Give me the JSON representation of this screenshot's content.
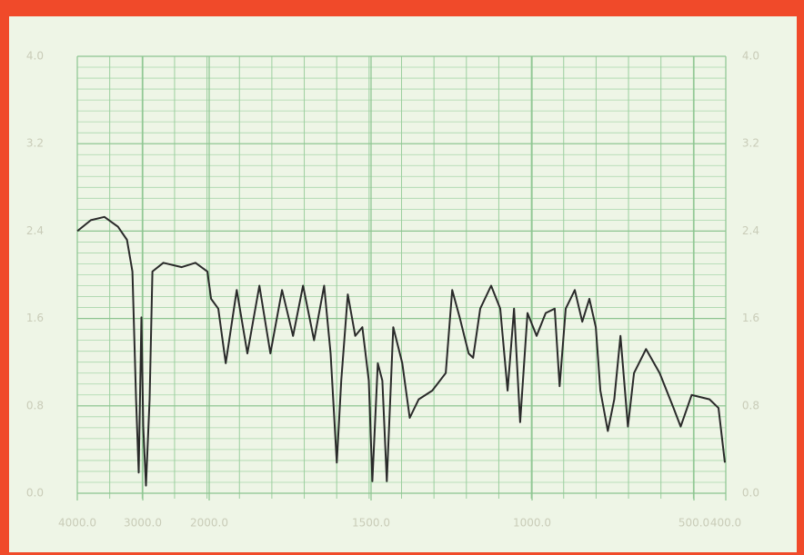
{
  "chart_data": {
    "type": "line",
    "color": "#2a2a2a",
    "grid": true,
    "x": [
      4000,
      3793,
      3586,
      3379,
      3241,
      3159,
      3103,
      3062,
      3021,
      2993,
      2952,
      2897,
      2855,
      2690,
      2414,
      2207,
      2028,
      1994,
      1972,
      1949,
      1915,
      1882,
      1845,
      1811,
      1775,
      1741,
      1710,
      1676,
      1645,
      1625,
      1606,
      1592,
      1572,
      1549,
      1527,
      1507,
      1496,
      1479,
      1465,
      1451,
      1431,
      1403,
      1380,
      1352,
      1310,
      1268,
      1248,
      1225,
      1197,
      1183,
      1161,
      1127,
      1099,
      1076,
      1056,
      1037,
      1014,
      986,
      958,
      930,
      915,
      896,
      868,
      845,
      823,
      803,
      789,
      766,
      746,
      727,
      704,
      685,
      648,
      606,
      563,
      541,
      507,
      451,
      423,
      403
    ],
    "values": [
      2.4,
      2.5,
      2.53,
      2.44,
      2.32,
      2.03,
      0.86,
      0.19,
      1.61,
      0.61,
      0.07,
      0.86,
      2.03,
      2.11,
      2.07,
      2.11,
      2.03,
      1.78,
      1.69,
      1.19,
      1.86,
      1.28,
      1.9,
      1.28,
      1.86,
      1.44,
      1.9,
      1.4,
      1.9,
      1.28,
      0.28,
      1.03,
      1.82,
      1.44,
      1.52,
      1.03,
      0.11,
      1.19,
      1.03,
      0.11,
      1.52,
      1.19,
      0.69,
      0.86,
      0.94,
      1.1,
      1.86,
      1.61,
      1.28,
      1.24,
      1.69,
      1.9,
      1.69,
      0.94,
      1.69,
      0.65,
      1.65,
      1.44,
      1.65,
      1.69,
      0.98,
      1.69,
      1.86,
      1.57,
      1.78,
      1.52,
      0.94,
      0.57,
      0.86,
      1.44,
      0.61,
      1.1,
      1.32,
      1.1,
      0.78,
      0.61,
      0.9,
      0.86,
      0.78,
      0.28
    ],
    "xlim": [
      4000,
      400
    ],
    "xticks": [
      {
        "value": 4000,
        "label": "4000.0"
      },
      {
        "value": 3000,
        "label": "3000.0"
      },
      {
        "value": 2000,
        "label": "2000.0"
      },
      {
        "value": 1500,
        "label": "1500.0"
      },
      {
        "value": 1000,
        "label": "1000.0"
      },
      {
        "value": 500,
        "label": "500.0"
      },
      {
        "value": 400,
        "label": "400.0"
      }
    ],
    "ylim": [
      0,
      4
    ],
    "yticks": [
      {
        "value": 0,
        "label": "0.0"
      },
      0.8,
      1.6,
      2.4,
      3.2,
      {
        "value": 4,
        "label": "4.0"
      }
    ],
    "y2lim": [
      0,
      4
    ],
    "y2ticks": [
      {
        "value": 0,
        "label": "0.0"
      },
      0.8,
      1.6,
      2.4,
      3.2,
      {
        "value": 4,
        "label": "4.0"
      }
    ]
  }
}
